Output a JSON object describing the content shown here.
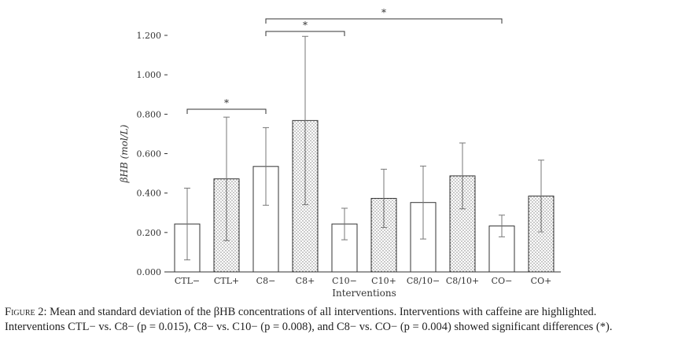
{
  "chart_data": {
    "type": "bar",
    "categories": [
      "CTL−",
      "CTL+",
      "C8−",
      "C8+",
      "C10−",
      "C10+",
      "C8/10−",
      "C8/10+",
      "CO−",
      "CO+"
    ],
    "values": [
      0.243,
      0.472,
      0.535,
      0.768,
      0.243,
      0.373,
      0.352,
      0.487,
      0.233,
      0.385
    ],
    "sd": [
      0.182,
      0.313,
      0.197,
      0.427,
      0.08,
      0.148,
      0.185,
      0.167,
      0.055,
      0.182
    ],
    "caffeine": [
      false,
      true,
      false,
      true,
      false,
      true,
      false,
      true,
      false,
      true
    ],
    "xlabel": "Interventions",
    "ylabel": "βHB (mol/L)",
    "ylim": [
      0,
      1.2
    ],
    "yticks": [
      "0.000",
      "0.200",
      "0.400",
      "0.600",
      "0.800",
      "1.000",
      "1.200"
    ],
    "significance": [
      {
        "from": "CTL−",
        "to": "C8−",
        "label": "*"
      },
      {
        "from": "C8−",
        "to": "C10−",
        "label": "*"
      },
      {
        "from": "C8−",
        "to": "CO−",
        "label": "*"
      }
    ],
    "colors": {
      "bar_fill": "#ffffff",
      "dots": "#444444",
      "axis": "#333333"
    }
  },
  "caption": {
    "label": "Figure 2:",
    "line1": "Mean and standard deviation of the βHB concentrations of all interventions. Interventions with caffeine are highlighted.",
    "line2": "Interventions CTL− vs. C8− (p = 0.015), C8− vs. C10− (p = 0.008), and C8− vs. CO− (p = 0.004) showed significant differences (*)."
  }
}
